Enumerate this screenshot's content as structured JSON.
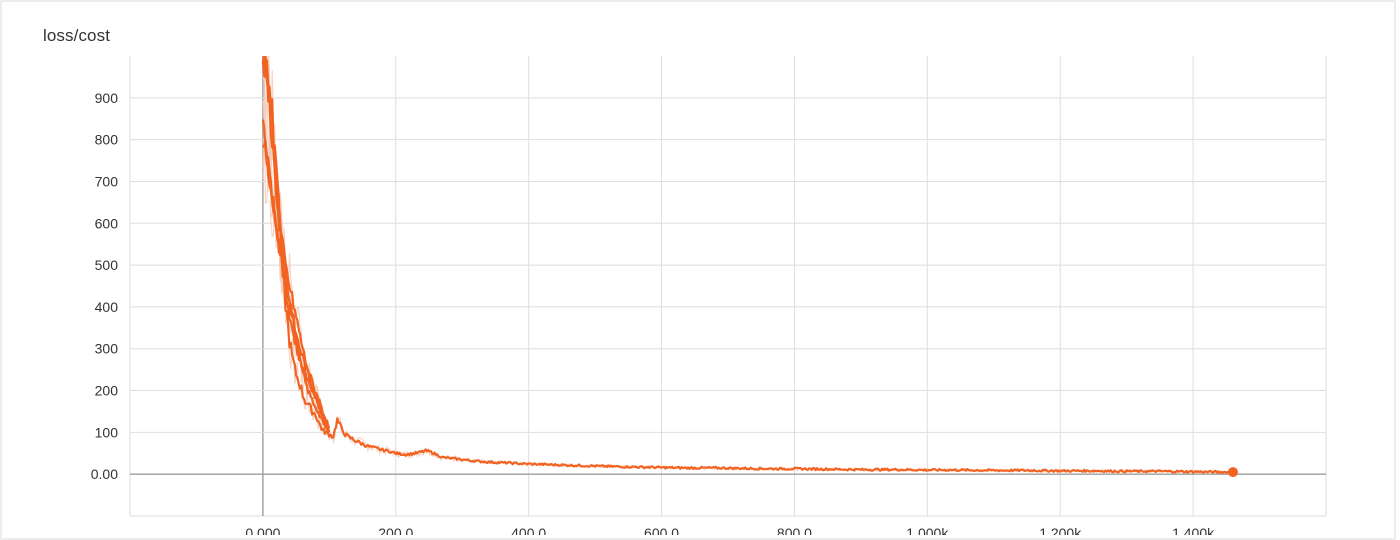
{
  "chart_data": {
    "type": "line",
    "title": "loss/cost",
    "xlabel": "",
    "ylabel": "",
    "xlim": [
      -200,
      1600
    ],
    "ylim": [
      -100,
      1000
    ],
    "x_ticks": [
      0,
      200,
      400,
      600,
      800,
      1000,
      1200,
      1400
    ],
    "x_tick_labels": [
      "0.000",
      "200.0",
      "400.0",
      "600.0",
      "800.0",
      "1.000k",
      "1.200k",
      "1.400k"
    ],
    "y_ticks": [
      0,
      100,
      200,
      300,
      400,
      500,
      600,
      700,
      800,
      900
    ],
    "y_tick_labels": [
      "0.00",
      "100",
      "200",
      "300",
      "400",
      "500",
      "600",
      "700",
      "800",
      "900"
    ],
    "grid": true,
    "colors": {
      "smoothed": "#f26322",
      "raw": "#f2c7b4",
      "grid": "#dedede",
      "zero_line": "#9e9e9e"
    },
    "series": [
      {
        "x": [
          0,
          4,
          8,
          12,
          16,
          20,
          24,
          28,
          32,
          36,
          40,
          44,
          48,
          52,
          56,
          60,
          64,
          68,
          72,
          76,
          80,
          85,
          90,
          95,
          100,
          106,
          112,
          118,
          124,
          130,
          140,
          150,
          160,
          170,
          180,
          190,
          200,
          215,
          230,
          245,
          255,
          270,
          290,
          310,
          330,
          350,
          370,
          390,
          410,
          430,
          450,
          470,
          490,
          510,
          540,
          570,
          600,
          640,
          680,
          720,
          760,
          800,
          850,
          900,
          950,
          1000,
          1050,
          1100,
          1150,
          1200,
          1250,
          1300,
          1350,
          1400,
          1450,
          1460
        ],
        "y": [
          1000,
          990,
          975,
          900,
          800,
          700,
          600,
          520,
          440,
          380,
          320,
          280,
          250,
          230,
          215,
          190,
          175,
          168,
          155,
          148,
          140,
          120,
          105,
          100,
          95,
          90,
          130,
          110,
          95,
          88,
          80,
          72,
          66,
          62,
          58,
          55,
          50,
          47,
          50,
          56,
          52,
          40,
          37,
          33,
          30,
          28,
          27,
          25,
          24,
          23,
          22,
          21,
          20,
          19,
          18,
          17,
          16,
          15,
          15,
          14,
          13,
          13,
          12,
          11,
          11,
          10,
          10,
          9,
          9,
          8,
          8,
          7,
          7,
          6,
          5,
          5
        ]
      },
      {
        "x": [
          0,
          4,
          8,
          12,
          16,
          20,
          24,
          28,
          32,
          36,
          40,
          44,
          48,
          52,
          56,
          60,
          64,
          68,
          72,
          76,
          80,
          85,
          90,
          95,
          100
        ],
        "y": [
          1000,
          980,
          940,
          880,
          800,
          720,
          650,
          580,
          520,
          470,
          420,
          380,
          340,
          300,
          270,
          240,
          220,
          200,
          185,
          170,
          160,
          140,
          125,
          110,
          100
        ]
      },
      {
        "x": [
          0,
          4,
          8,
          12,
          16,
          20,
          24,
          28,
          32,
          36,
          40,
          44,
          48,
          52,
          56,
          60,
          64,
          68,
          72,
          76,
          80,
          85,
          90,
          95,
          100
        ],
        "y": [
          860,
          800,
          740,
          690,
          640,
          600,
          560,
          520,
          480,
          440,
          410,
          380,
          350,
          320,
          300,
          280,
          260,
          240,
          220,
          200,
          185,
          160,
          140,
          120,
          105
        ]
      },
      {
        "x": [
          0,
          4,
          8,
          12,
          16,
          20,
          24,
          28,
          32,
          36,
          40,
          44,
          48,
          52,
          56,
          60,
          64,
          68,
          72,
          76,
          80,
          85,
          90,
          95,
          100
        ],
        "y": [
          800,
          770,
          740,
          700,
          650,
          600,
          550,
          500,
          460,
          420,
          385,
          350,
          320,
          295,
          275,
          255,
          240,
          225,
          210,
          195,
          180,
          160,
          140,
          120,
          100
        ]
      },
      {
        "x": [
          0,
          4,
          8,
          12,
          16,
          20,
          24,
          28,
          32,
          36,
          40,
          44,
          48,
          52,
          56,
          60,
          64,
          68,
          72,
          76,
          80,
          85,
          90,
          95,
          100
        ],
        "y": [
          990,
          960,
          900,
          840,
          760,
          680,
          610,
          560,
          520,
          480,
          450,
          420,
          390,
          360,
          330,
          300,
          270,
          250,
          230,
          210,
          195,
          175,
          150,
          130,
          110
        ]
      }
    ],
    "last_point": {
      "x": 1460,
      "y": 5
    }
  }
}
